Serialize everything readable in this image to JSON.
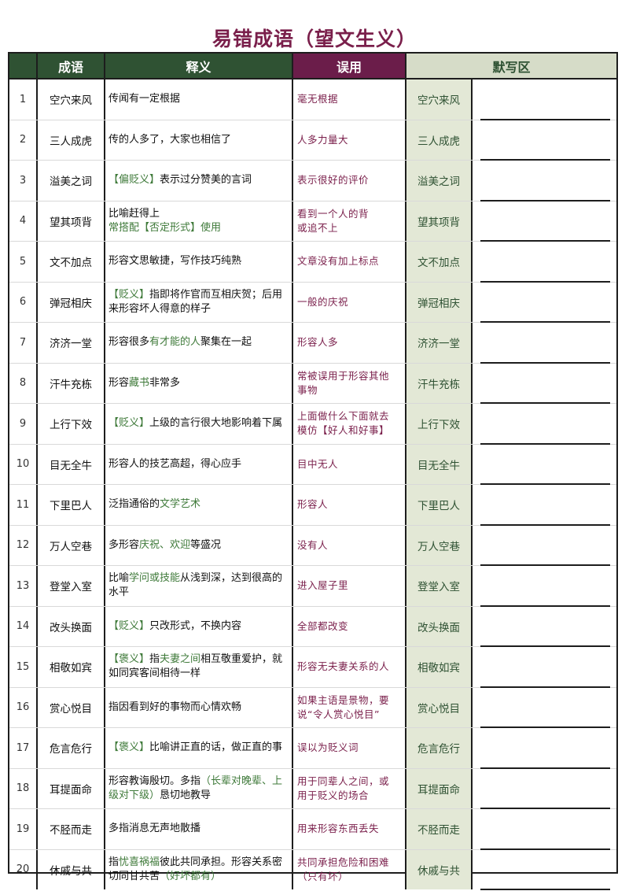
{
  "title": "易错成语（望文生义）",
  "headers": {
    "num": "",
    "idiom": "成语",
    "meaning": "释义",
    "misuse": "误用",
    "dictation": "默写区"
  },
  "rows": [
    {
      "num": "1",
      "idiom": "空穴来风",
      "meaning": [
        {
          "t": "传闻有一定根据"
        }
      ],
      "misuse": "毫无根据",
      "dict": "空穴来风"
    },
    {
      "num": "2",
      "idiom": "三人成虎",
      "meaning": [
        {
          "t": "传的人多了，大家也相信了"
        }
      ],
      "misuse": "人多力量大",
      "dict": "三人成虎"
    },
    {
      "num": "3",
      "idiom": "溢美之词",
      "meaning": [
        {
          "t": "【偏贬义】",
          "g": true
        },
        {
          "t": "表示过分赞美的言词"
        }
      ],
      "misuse": "表示很好的评价",
      "dict": "溢美之词"
    },
    {
      "num": "4",
      "idiom": "望其项背",
      "meaning": [
        {
          "t": "比喻赶得上"
        },
        {
          "br": true
        },
        {
          "t": "常搭配【否定形式】使用",
          "g": true
        }
      ],
      "misuse": "看到一个人的背\n或追不上",
      "dict": "望其项背"
    },
    {
      "num": "5",
      "idiom": "文不加点",
      "meaning": [
        {
          "t": "形容文思敏捷，写作技巧纯熟"
        }
      ],
      "misuse": "文章没有加上标点",
      "dict": "文不加点"
    },
    {
      "num": "6",
      "idiom": "弹冠相庆",
      "meaning": [
        {
          "t": "【贬义】",
          "g": true
        },
        {
          "t": "指即将作官而互相庆贺；后用来形容坏人得意的样子"
        }
      ],
      "misuse": "一般的庆祝",
      "dict": "弹冠相庆"
    },
    {
      "num": "7",
      "idiom": "济济一堂",
      "meaning": [
        {
          "t": "形容很多"
        },
        {
          "t": "有才能的人",
          "g": true
        },
        {
          "t": "聚集在一起"
        }
      ],
      "misuse": "形容人多",
      "dict": "济济一堂"
    },
    {
      "num": "8",
      "idiom": "汗牛充栋",
      "meaning": [
        {
          "t": "形容"
        },
        {
          "t": "藏书",
          "g": true
        },
        {
          "t": "非常多"
        }
      ],
      "misuse": "常被误用于形容其他\n事物",
      "dict": "汗牛充栋"
    },
    {
      "num": "9",
      "idiom": "上行下效",
      "meaning": [
        {
          "t": "【贬义】",
          "g": true
        },
        {
          "t": "上级的言行很大地影响着下属"
        }
      ],
      "misuse": "上面做什么下面就去\n模仿【好人和好事】",
      "dict": "上行下效"
    },
    {
      "num": "10",
      "idiom": "目无全牛",
      "meaning": [
        {
          "t": "形容人的技艺高超，得心应手"
        }
      ],
      "misuse": "目中无人",
      "dict": "目无全牛"
    },
    {
      "num": "11",
      "idiom": "下里巴人",
      "meaning": [
        {
          "t": "泛指通俗的"
        },
        {
          "t": "文学艺术",
          "g": true
        }
      ],
      "misuse": "形容人",
      "dict": "下里巴人"
    },
    {
      "num": "12",
      "idiom": "万人空巷",
      "meaning": [
        {
          "t": "多形容"
        },
        {
          "t": "庆祝、欢迎",
          "g": true
        },
        {
          "t": "等盛况"
        }
      ],
      "misuse": "没有人",
      "dict": "万人空巷"
    },
    {
      "num": "13",
      "idiom": "登堂入室",
      "meaning": [
        {
          "t": "比喻"
        },
        {
          "t": "学问或技能",
          "g": true
        },
        {
          "t": "从浅到深，达到很高的水平"
        }
      ],
      "misuse": "进入屋子里",
      "dict": "登堂入室"
    },
    {
      "num": "14",
      "idiom": "改头换面",
      "meaning": [
        {
          "t": "【贬义】",
          "g": true
        },
        {
          "t": "只改形式，不换内容"
        }
      ],
      "misuse": "全部都改变",
      "dict": "改头换面"
    },
    {
      "num": "15",
      "idiom": "相敬如宾",
      "meaning": [
        {
          "t": "【褒义】",
          "g": true
        },
        {
          "t": "指"
        },
        {
          "t": "夫妻之间",
          "g": true
        },
        {
          "t": "相互敬重爱护，就如同宾客间相待一样"
        }
      ],
      "misuse": "形容无夫妻关系的人",
      "dict": "相敬如宾"
    },
    {
      "num": "16",
      "idiom": "赏心悦目",
      "meaning": [
        {
          "t": "指因看到好的事物而心情欢畅"
        }
      ],
      "misuse": "如果主语是景物，要\n说“令人赏心悦目”",
      "dict": "赏心悦目"
    },
    {
      "num": "17",
      "idiom": "危言危行",
      "meaning": [
        {
          "t": "【褒义】",
          "g": true
        },
        {
          "t": "比喻讲正直的话，做正直的事"
        }
      ],
      "misuse": "误以为贬义词",
      "dict": "危言危行"
    },
    {
      "num": "18",
      "idiom": "耳提面命",
      "meaning": [
        {
          "t": "形容教诲殷切。多指"
        },
        {
          "t": "（长辈对晚辈、上级对下级）",
          "g": true
        },
        {
          "t": "恳切地教导"
        }
      ],
      "misuse": "用于同辈人之间，或\n用于贬义的场合",
      "dict": "耳提面命"
    },
    {
      "num": "19",
      "idiom": "不胫而走",
      "meaning": [
        {
          "t": "多指消息无声地散播"
        }
      ],
      "misuse": "用来形容东西丢失",
      "dict": "不胫而走"
    },
    {
      "num": "20",
      "idiom": "休戚与共",
      "meaning": [
        {
          "t": "指"
        },
        {
          "t": "忧喜祸福",
          "g": true
        },
        {
          "t": "彼此共同承担。形容关系密切同甘共苦"
        },
        {
          "t": "（好坏都有）",
          "g": true
        }
      ],
      "misuse": "共同承担危险和困难\n（只有坏）",
      "dict": "休戚与共"
    }
  ]
}
